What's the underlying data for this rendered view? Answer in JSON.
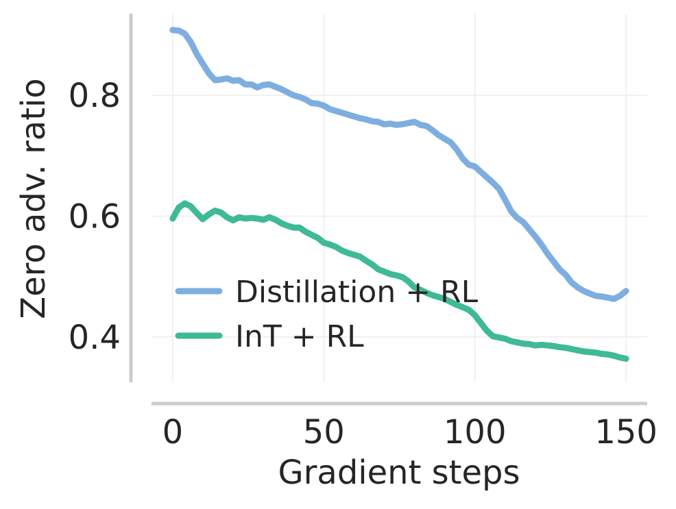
{
  "chart_data": {
    "type": "line",
    "xlabel": "Gradient steps",
    "ylabel": "Zero adv. ratio",
    "xlim": [
      -7,
      157
    ],
    "ylim": [
      0.325,
      0.935
    ],
    "xticks": [
      0,
      50,
      100,
      150
    ],
    "xtick_labels": [
      "0",
      "50",
      "100",
      "150"
    ],
    "yticks": [
      0.4,
      0.6,
      0.8
    ],
    "ytick_labels": [
      "0.4",
      "0.6",
      "0.8"
    ],
    "grid": true,
    "legend_position": "lower-left",
    "series": [
      {
        "name": "Distillation + RL",
        "color": "#7eaee0",
        "x": [
          0,
          2,
          4,
          6,
          8,
          10,
          12,
          14,
          16,
          18,
          20,
          22,
          24,
          26,
          28,
          30,
          32,
          34,
          36,
          38,
          40,
          42,
          44,
          46,
          48,
          50,
          52,
          54,
          56,
          58,
          60,
          62,
          64,
          66,
          68,
          70,
          72,
          74,
          76,
          78,
          80,
          82,
          84,
          86,
          88,
          90,
          92,
          94,
          96,
          98,
          100,
          102,
          104,
          106,
          108,
          110,
          112,
          114,
          116,
          118,
          120,
          122,
          124,
          126,
          128,
          130,
          132,
          134,
          136,
          138,
          140,
          142,
          144,
          146,
          148,
          150
        ],
        "values": [
          0.908,
          0.907,
          0.902,
          0.888,
          0.868,
          0.852,
          0.836,
          0.825,
          0.826,
          0.828,
          0.824,
          0.825,
          0.818,
          0.818,
          0.813,
          0.817,
          0.818,
          0.814,
          0.81,
          0.805,
          0.8,
          0.797,
          0.793,
          0.787,
          0.786,
          0.783,
          0.777,
          0.774,
          0.771,
          0.768,
          0.765,
          0.762,
          0.76,
          0.757,
          0.756,
          0.752,
          0.753,
          0.751,
          0.752,
          0.754,
          0.756,
          0.751,
          0.749,
          0.742,
          0.734,
          0.728,
          0.722,
          0.71,
          0.695,
          0.685,
          0.682,
          0.673,
          0.664,
          0.655,
          0.645,
          0.627,
          0.608,
          0.597,
          0.59,
          0.578,
          0.566,
          0.553,
          0.538,
          0.525,
          0.512,
          0.503,
          0.49,
          0.482,
          0.476,
          0.472,
          0.468,
          0.467,
          0.465,
          0.463,
          0.468,
          0.476
        ]
      },
      {
        "name": "InT + RL",
        "color": "#3fba96",
        "x": [
          0,
          2,
          4,
          6,
          8,
          10,
          12,
          14,
          16,
          18,
          20,
          22,
          24,
          26,
          28,
          30,
          32,
          34,
          36,
          38,
          40,
          42,
          44,
          46,
          48,
          50,
          52,
          54,
          56,
          58,
          60,
          62,
          64,
          66,
          68,
          70,
          72,
          74,
          76,
          78,
          80,
          82,
          84,
          86,
          88,
          90,
          92,
          94,
          96,
          98,
          100,
          102,
          104,
          106,
          108,
          110,
          112,
          114,
          116,
          118,
          120,
          122,
          124,
          126,
          128,
          130,
          132,
          134,
          136,
          138,
          140,
          142,
          144,
          146,
          148,
          150
        ],
        "values": [
          0.596,
          0.614,
          0.621,
          0.616,
          0.605,
          0.595,
          0.603,
          0.609,
          0.606,
          0.598,
          0.593,
          0.598,
          0.596,
          0.597,
          0.596,
          0.594,
          0.598,
          0.594,
          0.588,
          0.584,
          0.581,
          0.581,
          0.574,
          0.569,
          0.564,
          0.556,
          0.553,
          0.549,
          0.543,
          0.539,
          0.536,
          0.533,
          0.526,
          0.52,
          0.512,
          0.508,
          0.504,
          0.502,
          0.499,
          0.492,
          0.482,
          0.478,
          0.473,
          0.469,
          0.466,
          0.463,
          0.458,
          0.453,
          0.449,
          0.445,
          0.436,
          0.423,
          0.41,
          0.401,
          0.399,
          0.397,
          0.393,
          0.391,
          0.389,
          0.388,
          0.386,
          0.387,
          0.386,
          0.385,
          0.383,
          0.382,
          0.38,
          0.378,
          0.376,
          0.375,
          0.374,
          0.372,
          0.371,
          0.369,
          0.366,
          0.364
        ]
      }
    ]
  }
}
